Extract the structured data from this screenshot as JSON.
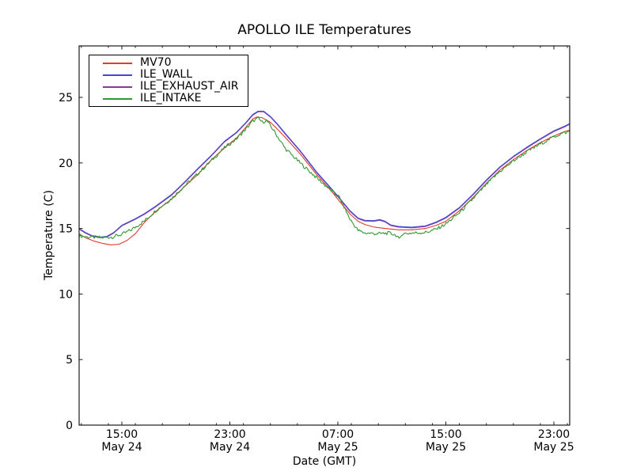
{
  "figure": {
    "title": "APOLLO ILE Temperatures",
    "xlabel": "Date (GMT)",
    "ylabel": "Temperature (C)",
    "frame_color": "#1a1a1a",
    "background": "#ffffff"
  },
  "chart_data": {
    "type": "line",
    "title": "APOLLO ILE Temperatures",
    "xlabel": "Date (GMT)",
    "ylabel": "Temperature (C)",
    "x_unit": "hours since May 24 00:00 GMT",
    "xlim": [
      11.83,
      48.17
    ],
    "ylim": [
      0,
      28.93
    ],
    "grid": false,
    "legend_position": "upper left",
    "yticks": [
      0,
      5,
      10,
      15,
      20,
      25
    ],
    "xticks": [
      {
        "t": 15,
        "time": "15:00",
        "date": "May 24"
      },
      {
        "t": 23,
        "time": "23:00",
        "date": "May 24"
      },
      {
        "t": 31,
        "time": "07:00",
        "date": "May 25"
      },
      {
        "t": 39,
        "time": "15:00",
        "date": "May 25"
      },
      {
        "t": 47,
        "time": "23:00",
        "date": "May 25"
      }
    ],
    "minor_xtick_every_hours": 2,
    "draw_order": [
      "ILE_EXHAUST_AIR",
      "ILE_WALL",
      "MV70",
      "ILE_INTAKE"
    ],
    "series": [
      {
        "name": "MV70",
        "color": "#e0392f",
        "noise_amplitude_c": 0,
        "points": [
          [
            11.83,
            14.6
          ],
          [
            12.3,
            14.3
          ],
          [
            12.9,
            14.05
          ],
          [
            13.6,
            13.85
          ],
          [
            14.2,
            13.75
          ],
          [
            14.8,
            13.8
          ],
          [
            15.4,
            14.1
          ],
          [
            16.0,
            14.6
          ],
          [
            16.7,
            15.5
          ],
          [
            17.5,
            16.3
          ],
          [
            18.7,
            17.25
          ],
          [
            19.6,
            18.15
          ],
          [
            20.6,
            19.1
          ],
          [
            21.6,
            20.2
          ],
          [
            22.6,
            21.15
          ],
          [
            23.5,
            21.9
          ],
          [
            24.2,
            22.75
          ],
          [
            24.7,
            23.35
          ],
          [
            25.0,
            23.5
          ],
          [
            25.4,
            23.45
          ],
          [
            26.0,
            23.1
          ],
          [
            26.5,
            22.6
          ],
          [
            27.1,
            21.95
          ],
          [
            28.2,
            20.7
          ],
          [
            29.4,
            19.15
          ],
          [
            30.6,
            17.75
          ],
          [
            31.1,
            17.1
          ],
          [
            31.9,
            16.1
          ],
          [
            32.5,
            15.55
          ],
          [
            33.0,
            15.3
          ],
          [
            33.7,
            15.1
          ],
          [
            34.5,
            15.0
          ],
          [
            35.5,
            14.9
          ],
          [
            36.5,
            14.9
          ],
          [
            37.5,
            15.0
          ],
          [
            38.3,
            15.25
          ],
          [
            39.0,
            15.55
          ],
          [
            40.0,
            16.35
          ],
          [
            41.0,
            17.35
          ],
          [
            42.0,
            18.45
          ],
          [
            43.0,
            19.45
          ],
          [
            44.0,
            20.25
          ],
          [
            45.0,
            20.95
          ],
          [
            46.0,
            21.55
          ],
          [
            47.0,
            22.05
          ],
          [
            47.8,
            22.4
          ],
          [
            48.17,
            22.5
          ]
        ]
      },
      {
        "name": "ILE_WALL",
        "color": "#4448d8",
        "noise_amplitude_c": 0,
        "points": [
          [
            11.83,
            15.0
          ],
          [
            12.3,
            14.7
          ],
          [
            12.8,
            14.45
          ],
          [
            13.4,
            14.35
          ],
          [
            13.9,
            14.4
          ],
          [
            14.4,
            14.7
          ],
          [
            15.0,
            15.25
          ],
          [
            16.0,
            15.75
          ],
          [
            16.7,
            16.15
          ],
          [
            17.5,
            16.7
          ],
          [
            18.7,
            17.6
          ],
          [
            19.6,
            18.5
          ],
          [
            20.6,
            19.55
          ],
          [
            21.6,
            20.55
          ],
          [
            22.6,
            21.65
          ],
          [
            23.5,
            22.35
          ],
          [
            24.2,
            23.1
          ],
          [
            24.7,
            23.7
          ],
          [
            25.1,
            23.95
          ],
          [
            25.5,
            23.95
          ],
          [
            26.0,
            23.55
          ],
          [
            26.5,
            23.0
          ],
          [
            27.1,
            22.25
          ],
          [
            28.2,
            20.95
          ],
          [
            29.4,
            19.35
          ],
          [
            30.6,
            17.95
          ],
          [
            31.1,
            17.35
          ],
          [
            31.9,
            16.35
          ],
          [
            32.5,
            15.8
          ],
          [
            33.0,
            15.62
          ],
          [
            33.7,
            15.6
          ],
          [
            34.1,
            15.68
          ],
          [
            34.5,
            15.55
          ],
          [
            34.9,
            15.28
          ],
          [
            35.5,
            15.15
          ],
          [
            36.5,
            15.1
          ],
          [
            37.5,
            15.2
          ],
          [
            38.3,
            15.5
          ],
          [
            39.0,
            15.85
          ],
          [
            40.0,
            16.6
          ],
          [
            41.0,
            17.6
          ],
          [
            42.0,
            18.7
          ],
          [
            43.0,
            19.7
          ],
          [
            44.0,
            20.5
          ],
          [
            45.0,
            21.2
          ],
          [
            46.0,
            21.85
          ],
          [
            47.0,
            22.45
          ],
          [
            47.8,
            22.8
          ],
          [
            48.17,
            23.0
          ]
        ]
      },
      {
        "name": "ILE_EXHAUST_AIR",
        "color": "#8a3a96",
        "noise_amplitude_c": 0,
        "points": [
          [
            11.83,
            14.95
          ],
          [
            12.3,
            14.65
          ],
          [
            12.8,
            14.4
          ],
          [
            13.4,
            14.3
          ],
          [
            13.9,
            14.35
          ],
          [
            14.4,
            14.65
          ],
          [
            15.0,
            15.2
          ],
          [
            16.0,
            15.7
          ],
          [
            16.7,
            16.1
          ],
          [
            17.5,
            16.65
          ],
          [
            18.7,
            17.55
          ],
          [
            19.6,
            18.45
          ],
          [
            20.6,
            19.5
          ],
          [
            21.6,
            20.5
          ],
          [
            22.6,
            21.6
          ],
          [
            23.5,
            22.3
          ],
          [
            24.2,
            23.05
          ],
          [
            24.7,
            23.65
          ],
          [
            25.1,
            23.9
          ],
          [
            25.5,
            23.9
          ],
          [
            26.0,
            23.5
          ],
          [
            26.5,
            22.95
          ],
          [
            27.1,
            22.2
          ],
          [
            28.2,
            20.9
          ],
          [
            29.4,
            19.3
          ],
          [
            30.6,
            17.9
          ],
          [
            31.1,
            17.3
          ],
          [
            31.9,
            16.3
          ],
          [
            32.5,
            15.75
          ],
          [
            33.0,
            15.57
          ],
          [
            33.7,
            15.55
          ],
          [
            34.1,
            15.63
          ],
          [
            34.5,
            15.5
          ],
          [
            34.9,
            15.23
          ],
          [
            35.5,
            15.1
          ],
          [
            36.5,
            15.05
          ],
          [
            37.5,
            15.15
          ],
          [
            38.3,
            15.45
          ],
          [
            39.0,
            15.8
          ],
          [
            40.0,
            16.55
          ],
          [
            41.0,
            17.55
          ],
          [
            42.0,
            18.65
          ],
          [
            43.0,
            19.65
          ],
          [
            44.0,
            20.45
          ],
          [
            45.0,
            21.15
          ],
          [
            46.0,
            21.8
          ],
          [
            47.0,
            22.4
          ],
          [
            47.8,
            22.75
          ],
          [
            48.17,
            22.95
          ]
        ]
      },
      {
        "name": "ILE_INTAKE",
        "color": "#2f9a2f",
        "noise_amplitude_c": 0.13,
        "points": [
          [
            11.83,
            14.45
          ],
          [
            12.5,
            14.35
          ],
          [
            13.5,
            14.3
          ],
          [
            14.3,
            14.35
          ],
          [
            15.0,
            14.55
          ],
          [
            15.7,
            14.9
          ],
          [
            16.7,
            15.6
          ],
          [
            17.5,
            16.35
          ],
          [
            18.7,
            17.3
          ],
          [
            19.6,
            18.2
          ],
          [
            20.6,
            19.15
          ],
          [
            21.6,
            20.15
          ],
          [
            22.6,
            21.15
          ],
          [
            23.5,
            21.85
          ],
          [
            24.2,
            22.6
          ],
          [
            24.7,
            23.2
          ],
          [
            25.1,
            23.4
          ],
          [
            25.4,
            23.1
          ],
          [
            25.7,
            23.25
          ],
          [
            26.2,
            22.55
          ],
          [
            27.1,
            21.1
          ],
          [
            28.2,
            20.0
          ],
          [
            29.4,
            18.9
          ],
          [
            30.6,
            17.8
          ],
          [
            31.1,
            17.4
          ],
          [
            31.9,
            15.7
          ],
          [
            32.5,
            14.85
          ],
          [
            33.0,
            14.65
          ],
          [
            34.0,
            14.6
          ],
          [
            34.8,
            14.65
          ],
          [
            35.3,
            14.5
          ],
          [
            35.55,
            14.15
          ],
          [
            35.75,
            14.6
          ],
          [
            36.5,
            14.65
          ],
          [
            37.5,
            14.7
          ],
          [
            38.3,
            14.95
          ],
          [
            39.0,
            15.35
          ],
          [
            40.0,
            16.2
          ],
          [
            41.0,
            17.25
          ],
          [
            42.0,
            18.35
          ],
          [
            43.0,
            19.35
          ],
          [
            44.0,
            20.15
          ],
          [
            45.0,
            20.85
          ],
          [
            46.0,
            21.45
          ],
          [
            47.0,
            22.0
          ],
          [
            47.6,
            22.25
          ],
          [
            48.17,
            22.4
          ]
        ]
      }
    ]
  }
}
